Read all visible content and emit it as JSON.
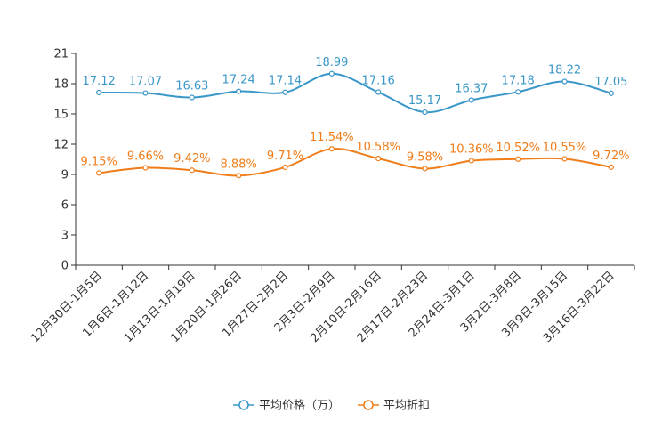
{
  "chart_data": {
    "type": "line",
    "title": "",
    "xlabel": "",
    "ylabel": "",
    "ylim": [
      0,
      21
    ],
    "yticks": [
      0,
      3,
      6,
      9,
      12,
      15,
      18,
      21
    ],
    "grid": false,
    "legend_position": "bottom",
    "categories": [
      "12月30日-1月5日",
      "1月6日-1月12日",
      "1月13日-1月19日",
      "1月20日-1月26日",
      "1月27日-2月2日",
      "2月3日-2月9日",
      "2月10日-2月16日",
      "2月17日-2月23日",
      "2月24日-3月1日",
      "3月2日-3月8日",
      "3月9日-3月15日",
      "3月16日-3月22日"
    ],
    "series": [
      {
        "name": "平均价格（万）",
        "color": "#3a97c9",
        "values": [
          17.12,
          17.07,
          16.63,
          17.24,
          17.14,
          18.99,
          17.16,
          15.17,
          16.37,
          17.18,
          18.22,
          17.05
        ],
        "labels": [
          "17.12",
          "17.07",
          "16.63",
          "17.24",
          "17.14",
          "18.99",
          "17.16",
          "15.17",
          "16.37",
          "17.18",
          "18.22",
          "17.05"
        ]
      },
      {
        "name": "平均折扣",
        "color": "#f07d1a",
        "values": [
          9.15,
          9.66,
          9.42,
          8.88,
          9.71,
          11.54,
          10.58,
          9.58,
          10.36,
          10.52,
          10.55,
          9.72
        ],
        "labels": [
          "9.15%",
          "9.66%",
          "9.42%",
          "8.88%",
          "9.71%",
          "11.54%",
          "10.58%",
          "9.58%",
          "10.36%",
          "10.52%",
          "10.55%",
          "9.72%"
        ]
      }
    ]
  }
}
